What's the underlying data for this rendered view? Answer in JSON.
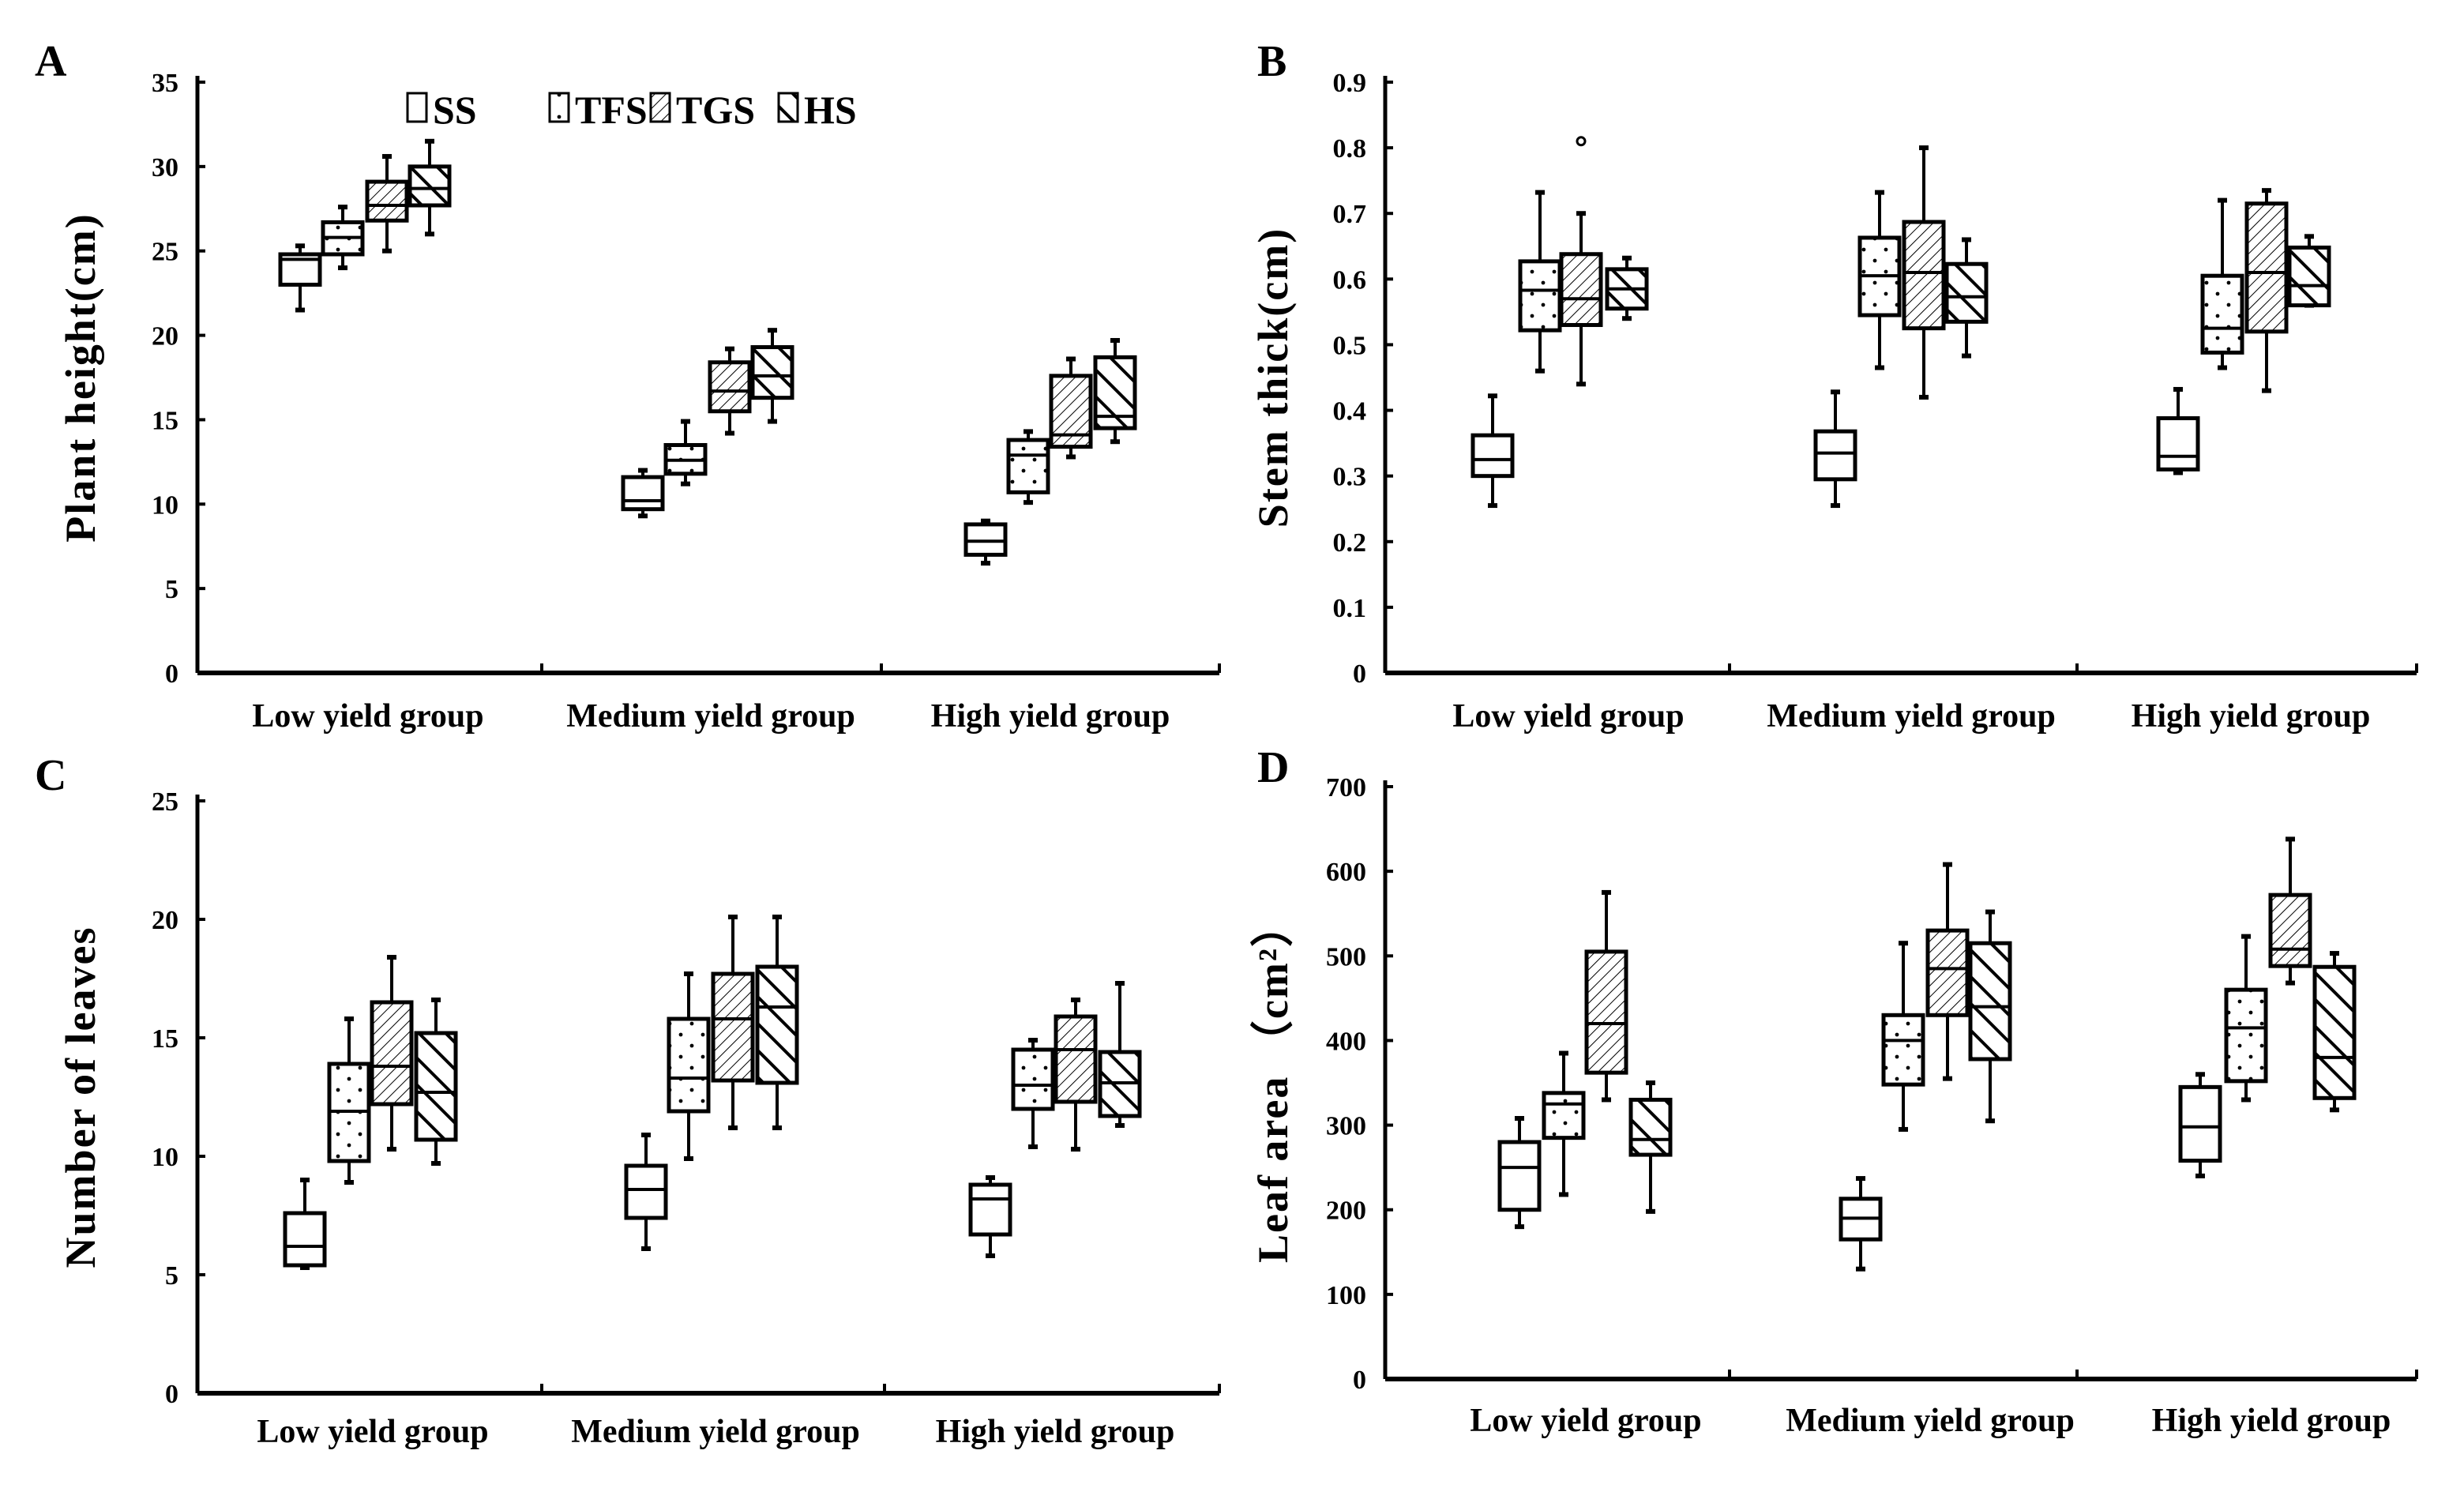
{
  "chart_data": [
    {
      "type": "box",
      "panel": "A",
      "ylabel": "Plant  height(cm)",
      "ylim": [
        0,
        35
      ],
      "yticks": [
        0,
        5,
        10,
        15,
        20,
        25,
        30,
        35
      ],
      "categories": [
        "Low yield group",
        "Medium yield group",
        "High yield group"
      ],
      "series_names": [
        "SS",
        "TFS",
        "TGS",
        "HS"
      ],
      "boxes": [
        [
          [
            21.5,
            23,
            24.5,
            24.8,
            25.3
          ],
          [
            24,
            24.8,
            25.8,
            26.7,
            27.6
          ],
          [
            25,
            26.8,
            27.7,
            29.1,
            30.6
          ],
          [
            26,
            27.7,
            28.7,
            30,
            31.5
          ]
        ],
        [
          [
            9.3,
            9.7,
            10.2,
            11.6,
            12
          ],
          [
            11.2,
            11.8,
            12.6,
            13.5,
            14.9
          ],
          [
            14.2,
            15.5,
            16.7,
            18.4,
            19.2
          ],
          [
            14.9,
            16.3,
            17.6,
            19.3,
            20.3
          ]
        ],
        [
          [
            6.5,
            7,
            7.8,
            8.8,
            9
          ],
          [
            10.1,
            10.7,
            12.9,
            13.8,
            14.3
          ],
          [
            12.8,
            13.4,
            14.1,
            17.6,
            18.6
          ],
          [
            13.7,
            14.5,
            15.2,
            18.7,
            19.7
          ]
        ]
      ],
      "outliers": []
    },
    {
      "type": "box",
      "panel": "B",
      "ylabel": "Stem thick(cm)",
      "ylim": [
        0,
        0.9
      ],
      "yticks": [
        0,
        0.1,
        0.2,
        0.3,
        0.4,
        0.5,
        0.6,
        0.7,
        0.8,
        0.9
      ],
      "categories": [
        "Low yield group",
        "Medium yield group",
        "High yield group"
      ],
      "series_names": [
        "SS",
        "TFS",
        "TGS",
        "HS"
      ],
      "boxes": [
        [
          [
            0.255,
            0.3,
            0.325,
            0.362,
            0.422
          ],
          [
            0.46,
            0.522,
            0.583,
            0.627,
            0.732
          ],
          [
            0.44,
            0.53,
            0.57,
            0.638,
            0.7
          ],
          [
            0.54,
            0.555,
            0.585,
            0.615,
            0.632
          ]
        ],
        [
          [
            0.255,
            0.295,
            0.335,
            0.368,
            0.428
          ],
          [
            0.465,
            0.545,
            0.605,
            0.663,
            0.732
          ],
          [
            0.42,
            0.525,
            0.61,
            0.687,
            0.8
          ],
          [
            0.483,
            0.535,
            0.573,
            0.623,
            0.66
          ]
        ],
        [
          [
            0.305,
            0.31,
            0.33,
            0.388,
            0.432
          ],
          [
            0.465,
            0.488,
            0.525,
            0.605,
            0.72
          ],
          [
            0.43,
            0.52,
            0.61,
            0.715,
            0.735
          ],
          [
            0.56,
            0.56,
            0.59,
            0.648,
            0.665
          ]
        ]
      ],
      "outliers": [
        {
          "group": 0,
          "series": 2,
          "value": 0.81
        }
      ]
    },
    {
      "type": "box",
      "panel": "C",
      "ylabel": "Number of leaves",
      "ylim": [
        0,
        25
      ],
      "yticks": [
        0,
        5,
        10,
        15,
        20,
        25
      ],
      "categories": [
        "Low yield group",
        "Medium yield group",
        "High yield group"
      ],
      "series_names": [
        "SS",
        "TFS",
        "TGS",
        "HS"
      ],
      "boxes": [
        [
          [
            5.3,
            5.4,
            6.2,
            7.6,
            9
          ],
          [
            8.9,
            9.8,
            11.9,
            13.9,
            15.8
          ],
          [
            10.3,
            12.2,
            13.8,
            16.5,
            18.4
          ],
          [
            9.7,
            10.7,
            12.7,
            15.2,
            16.6
          ]
        ],
        [
          [
            6.1,
            7.4,
            8.6,
            9.6,
            10.9
          ],
          [
            9.9,
            11.9,
            13.3,
            15.8,
            17.7
          ],
          [
            11.2,
            13.2,
            15.8,
            17.7,
            20.1
          ],
          [
            11.2,
            13.1,
            16.3,
            18,
            20.1
          ]
        ],
        [
          [
            5.8,
            6.7,
            8.2,
            8.8,
            9.1
          ],
          [
            10.4,
            12,
            13,
            14.5,
            14.9
          ],
          [
            10.3,
            12.3,
            14.5,
            15.9,
            16.6
          ],
          [
            11.3,
            11.7,
            13.1,
            14.4,
            17.3
          ]
        ]
      ],
      "outliers": []
    },
    {
      "type": "box",
      "panel": "D",
      "ylabel": "Leaf area （cm²）",
      "ylim": [
        0,
        700
      ],
      "yticks": [
        0,
        100,
        200,
        300,
        400,
        500,
        600,
        700
      ],
      "categories": [
        "Low yield group",
        "Medium yield group",
        "High yield group"
      ],
      "series_names": [
        "SS",
        "TFS",
        "TGS",
        "HS"
      ],
      "boxes": [
        [
          [
            180,
            200,
            250,
            280,
            308
          ],
          [
            218,
            285,
            325,
            338,
            385
          ],
          [
            330,
            362,
            420,
            505,
            575
          ],
          [
            198,
            265,
            283,
            330,
            350
          ]
        ],
        [
          [
            130,
            165,
            190,
            213,
            237
          ],
          [
            295,
            348,
            400,
            430,
            515
          ],
          [
            355,
            430,
            485,
            530,
            608
          ],
          [
            305,
            378,
            440,
            515,
            552
          ]
        ],
        [
          [
            240,
            258,
            298,
            345,
            360
          ],
          [
            330,
            352,
            415,
            460,
            523
          ],
          [
            468,
            488,
            508,
            572,
            638
          ],
          [
            318,
            332,
            380,
            487,
            503
          ]
        ]
      ],
      "outliers": []
    }
  ]
}
